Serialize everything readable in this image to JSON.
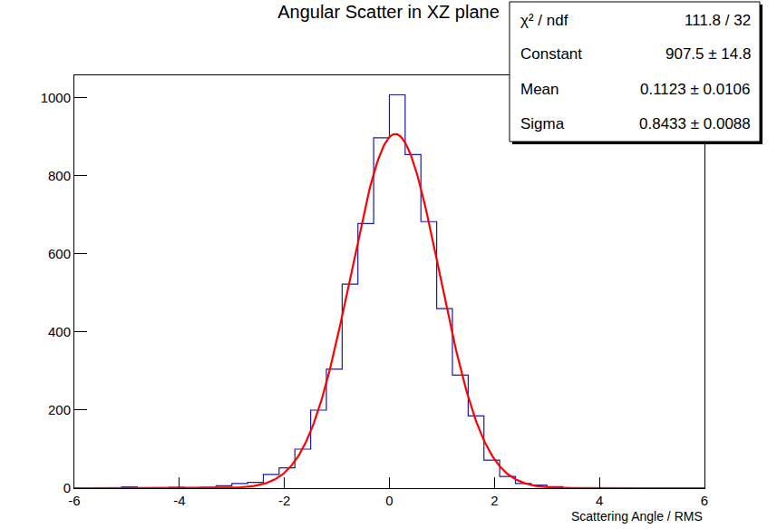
{
  "chart_data": {
    "type": "histogram",
    "title": "Angular Scatter in XZ plane",
    "x_label": "Scattering Angle / RMS",
    "bins": [
      -6,
      -5.7,
      -5.4,
      -5.1,
      -4.8,
      -4.5,
      -4.2,
      -3.9,
      -3.6,
      -3.3,
      -3,
      -2.7,
      -2.4,
      -2.1,
      -1.8,
      -1.5,
      -1.2,
      -0.9,
      -0.6,
      -0.3,
      0,
      0.3,
      0.6,
      0.9,
      1.2,
      1.5,
      1.8,
      2.1,
      2.4,
      2.7,
      3,
      3.3,
      3.6,
      3.9,
      4.2,
      4.5,
      4.8,
      5.1,
      5.4,
      5.7,
      6
    ],
    "values": [
      0,
      0,
      0,
      3,
      0,
      0,
      2,
      0,
      2,
      6,
      12,
      15,
      35,
      52,
      100,
      200,
      305,
      523,
      678,
      898,
      1008,
      855,
      683,
      460,
      290,
      185,
      72,
      30,
      12,
      8,
      4,
      0,
      0,
      0,
      0,
      0,
      0,
      0,
      0,
      0
    ],
    "color": "#1a1aa8",
    "xlim": [
      -6,
      6
    ],
    "ylim": [
      0,
      1058
    ],
    "xticks": [
      -6,
      -4,
      -2,
      0,
      2,
      4,
      6
    ],
    "yticks": [
      0,
      200,
      400,
      600,
      800,
      1000
    ],
    "grid": false,
    "fit": {
      "type": "line",
      "color": "#ff0000",
      "constant": 907.5,
      "mean": 0.1123,
      "sigma": 0.8433
    },
    "stats": [
      {
        "label": "χ² / ndf",
        "value": "111.8 / 32"
      },
      {
        "label": "Constant",
        "value": "907.5 ± 14.8"
      },
      {
        "label": "Mean",
        "value": "0.1123 ± 0.0106"
      },
      {
        "label": "Sigma",
        "value": "0.8433 ± 0.0088"
      }
    ]
  }
}
